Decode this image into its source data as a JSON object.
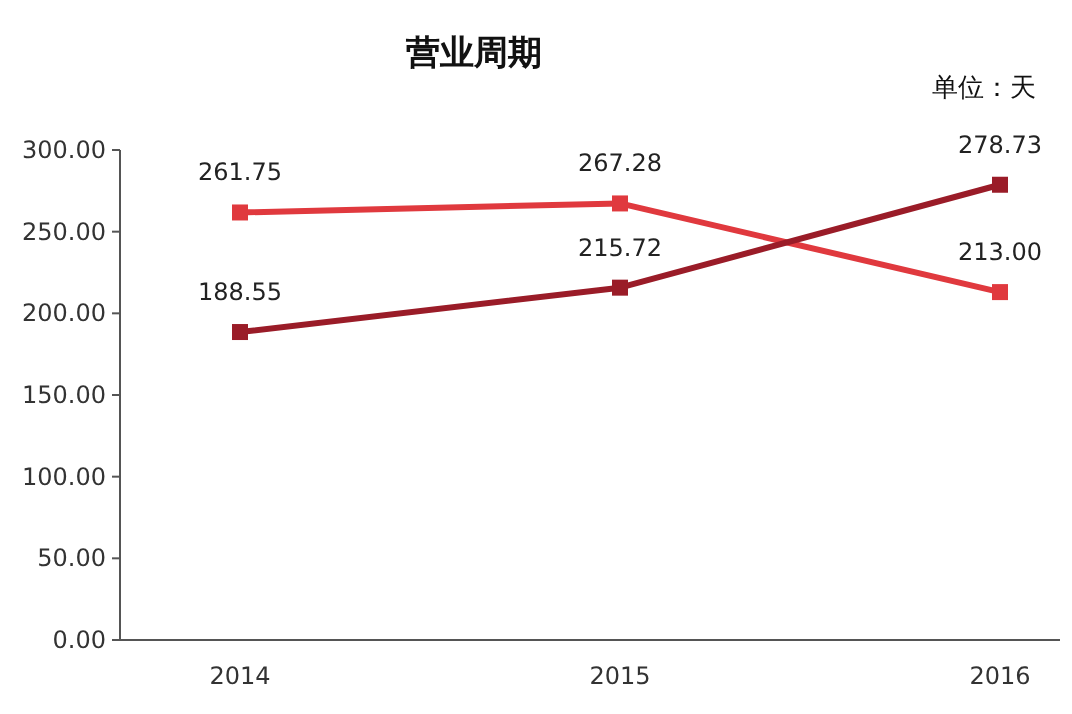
{
  "chart_data": {
    "type": "line",
    "title": "营业周期",
    "annotations": [
      "单位：天"
    ],
    "categories": [
      "2014",
      "2015",
      "2016"
    ],
    "ylim": [
      0,
      300
    ],
    "yticks": [
      {
        "value": 0,
        "label": "0.00"
      },
      {
        "value": 50,
        "label": "50.00"
      },
      {
        "value": 100,
        "label": "100.00"
      },
      {
        "value": 150,
        "label": "150.00"
      },
      {
        "value": 200,
        "label": "200.00"
      },
      {
        "value": 250,
        "label": "250.00"
      },
      {
        "value": 300,
        "label": "300.00"
      }
    ],
    "marker": "square",
    "grid": false,
    "series": [
      {
        "color": "#e0393e",
        "values": [
          261.75,
          267.28,
          213.0
        ],
        "value_labels": [
          "261.75",
          "267.28",
          "213.00"
        ]
      },
      {
        "color": "#9a1c28",
        "values": [
          188.55,
          215.72,
          278.73
        ],
        "value_labels": [
          "188.55",
          "215.72",
          "278.73"
        ]
      }
    ]
  }
}
